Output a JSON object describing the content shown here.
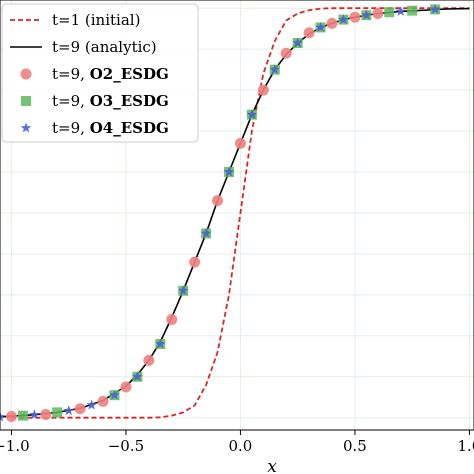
{
  "chart_data": {
    "type": "line",
    "xlabel": "x",
    "ylabel": "",
    "xlim": [
      -1.05,
      1.02
    ],
    "ylim": [
      -0.03,
      1.02
    ],
    "grid": true,
    "legend_position": "top-left",
    "x_ticks": [
      -1.0,
      -0.5,
      0.0,
      0.5,
      1.0
    ],
    "x_tick_labels": [
      "−1.0",
      "−0.5",
      "0.0",
      "0.5",
      "1.0"
    ],
    "y_grid": [
      0.0,
      0.1,
      0.2,
      0.3,
      0.4,
      0.5,
      0.6,
      0.7,
      0.8,
      0.9,
      1.0
    ],
    "series": [
      {
        "name": "t=1 (initial)",
        "style": "dashed-line",
        "color": "#d62728",
        "x": [
          -1.0,
          -0.8,
          -0.6,
          -0.5,
          -0.4,
          -0.35,
          -0.3,
          -0.25,
          -0.2,
          -0.15,
          -0.1,
          -0.05,
          0.0,
          0.05,
          0.1,
          0.15,
          0.2,
          0.25,
          0.3,
          0.35,
          0.4,
          0.5,
          0.6,
          0.8,
          1.0
        ],
        "y": [
          0.0,
          0.0,
          0.0,
          0.0,
          0.0,
          0.001,
          0.005,
          0.013,
          0.03,
          0.08,
          0.16,
          0.3,
          0.5,
          0.7,
          0.84,
          0.92,
          0.97,
          0.987,
          0.995,
          0.999,
          1.0,
          1.0,
          1.0,
          1.0,
          1.0
        ]
      },
      {
        "name": "t=9 (analytic)",
        "style": "solid-line",
        "color": "#000000",
        "x": [
          -1.05,
          -1.0,
          -0.9,
          -0.8,
          -0.7,
          -0.6,
          -0.5,
          -0.45,
          -0.4,
          -0.35,
          -0.3,
          -0.25,
          -0.2,
          -0.15,
          -0.1,
          -0.05,
          0.0,
          0.05,
          0.1,
          0.15,
          0.2,
          0.25,
          0.3,
          0.35,
          0.4,
          0.45,
          0.5,
          0.6,
          0.7,
          0.8,
          0.9,
          1.0
        ],
        "y": [
          0.002,
          0.004,
          0.007,
          0.013,
          0.023,
          0.042,
          0.077,
          0.105,
          0.14,
          0.185,
          0.245,
          0.31,
          0.38,
          0.45,
          0.53,
          0.6,
          0.67,
          0.74,
          0.8,
          0.85,
          0.887,
          0.915,
          0.937,
          0.953,
          0.963,
          0.972,
          0.978,
          0.987,
          0.992,
          0.995,
          0.998,
          0.999
        ]
      },
      {
        "name": "t=9, O2_ESDG",
        "label_prefix": "t=9, ",
        "label_bold": "O2_ESDG",
        "style": "circle-markers",
        "color": "#f08080",
        "x": [
          -1.0,
          -0.85,
          -0.7,
          -0.6,
          -0.5,
          -0.4,
          -0.3,
          -0.2,
          -0.1,
          0.0,
          0.1,
          0.2,
          0.3,
          0.4,
          0.5,
          0.6
        ],
        "y": [
          0.003,
          0.008,
          0.022,
          0.04,
          0.075,
          0.14,
          0.24,
          0.38,
          0.53,
          0.67,
          0.8,
          0.89,
          0.94,
          0.963,
          0.978,
          0.987
        ]
      },
      {
        "name": "t=9, O3_ESDG",
        "label_prefix": "t=9, ",
        "label_bold": "O3_ESDG",
        "style": "square-markers",
        "color": "#5cb85c",
        "x": [
          -0.95,
          -0.8,
          -0.55,
          -0.45,
          -0.35,
          -0.25,
          -0.15,
          -0.05,
          0.05,
          0.15,
          0.25,
          0.35,
          0.45,
          0.55,
          0.65,
          0.75,
          0.85
        ],
        "y": [
          0.005,
          0.013,
          0.055,
          0.1,
          0.18,
          0.31,
          0.45,
          0.6,
          0.74,
          0.85,
          0.915,
          0.953,
          0.972,
          0.983,
          0.99,
          0.994,
          0.997
        ]
      },
      {
        "name": "t=9, O4_ESDG",
        "label_prefix": "t=9, ",
        "label_bold": "O4_ESDG",
        "style": "star-markers",
        "color": "#4c5fd5",
        "x": [
          -1.05,
          -0.9,
          -0.75,
          -0.65,
          -0.55,
          -0.45,
          -0.35,
          -0.25,
          -0.15,
          -0.05,
          0.05,
          0.15,
          0.25,
          0.35,
          0.45,
          0.55,
          0.7,
          0.85
        ],
        "y": [
          0.002,
          0.007,
          0.017,
          0.031,
          0.055,
          0.1,
          0.18,
          0.31,
          0.45,
          0.6,
          0.74,
          0.85,
          0.915,
          0.953,
          0.972,
          0.983,
          0.992,
          0.997
        ]
      }
    ]
  }
}
